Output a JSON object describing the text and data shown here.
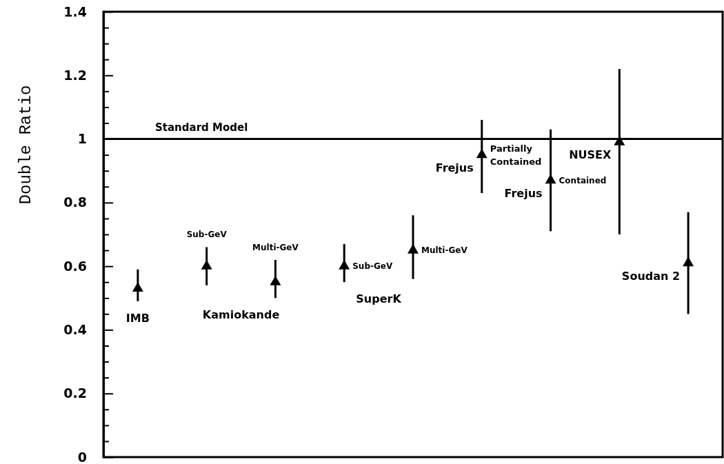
{
  "chart_data": {
    "type": "scatter",
    "ylabel": "Double Ratio",
    "categories": [
      null,
      null,
      null,
      null,
      null,
      null,
      null,
      null,
      null
    ],
    "ylim": [
      0,
      1.4
    ],
    "yticks": [
      0,
      {
        "value": 0.05,
        "label": null
      },
      {
        "value": 0.1,
        "label": null
      },
      {
        "value": 0.15,
        "label": null
      },
      0.2,
      {
        "value": 0.25,
        "label": null
      },
      {
        "value": 0.3,
        "label": null
      },
      {
        "value": 0.35,
        "label": null
      },
      0.4,
      {
        "value": 0.45,
        "label": null
      },
      {
        "value": 0.5,
        "label": null
      },
      {
        "value": 0.55,
        "label": null
      },
      0.6,
      {
        "value": 0.65,
        "label": null
      },
      {
        "value": 0.7,
        "label": null
      },
      {
        "value": 0.75,
        "label": null
      },
      0.8,
      {
        "value": 0.85,
        "label": null
      },
      {
        "value": 0.9,
        "label": null
      },
      {
        "value": 0.95,
        "label": null
      },
      1,
      {
        "value": 1.05,
        "label": null
      },
      {
        "value": 1.1,
        "label": null
      },
      {
        "value": 1.15,
        "label": null
      },
      1.2,
      {
        "value": 1.25,
        "label": null
      },
      {
        "value": 1.3,
        "label": null
      },
      {
        "value": 1.35,
        "label": null
      },
      1.4
    ],
    "tick_labels": "y",
    "marker": "triangle",
    "grid": false,
    "ref_lines": [
      {
        "axis": "y",
        "value": 1,
        "label": "Standard Model",
        "color": "#000000"
      }
    ],
    "series": [
      {
        "name": "IMB",
        "color": "#000000",
        "values": [
          0.53,
          null,
          null,
          null,
          null,
          null,
          null,
          null,
          null
        ],
        "errors": [
          [
            0.49,
            0.59
          ],
          null,
          null,
          null,
          null,
          null,
          null,
          null,
          null
        ]
      },
      {
        "name": "Kamiokande",
        "color": "#000000",
        "values": [
          null,
          0.6,
          0.55,
          null,
          null,
          null,
          null,
          null,
          null
        ],
        "errors": [
          null,
          [
            0.54,
            0.66
          ],
          [
            0.5,
            0.62
          ],
          null,
          null,
          null,
          null,
          null,
          null
        ],
        "value_labels": [
          null,
          "Sub-GeV",
          "Multi-GeV",
          null,
          null,
          null,
          null,
          null,
          null
        ]
      },
      {
        "name": "SuperK",
        "color": "#000000",
        "values": [
          null,
          null,
          null,
          0.6,
          0.65,
          null,
          null,
          null,
          null
        ],
        "errors": [
          null,
          null,
          null,
          [
            0.55,
            0.67
          ],
          [
            0.56,
            0.76
          ],
          null,
          null,
          null,
          null
        ],
        "value_labels": [
          null,
          null,
          null,
          "Sub-GeV",
          "Multi-GeV",
          null,
          null,
          null,
          null
        ]
      },
      {
        "name": "Frejus",
        "color": "#000000",
        "values": [
          null,
          null,
          null,
          null,
          null,
          0.95,
          null,
          null,
          null
        ],
        "errors": [
          null,
          null,
          null,
          null,
          null,
          [
            0.83,
            1.06
          ],
          null,
          null,
          null
        ],
        "value_labels": [
          null,
          null,
          null,
          null,
          null,
          "Partially Contained",
          null,
          null,
          null
        ]
      },
      {
        "name": "Frejus",
        "color": "#000000",
        "values": [
          null,
          null,
          null,
          null,
          null,
          null,
          0.87,
          null,
          null
        ],
        "errors": [
          null,
          null,
          null,
          null,
          null,
          null,
          [
            0.71,
            1.03
          ],
          null,
          null
        ],
        "value_labels": [
          null,
          null,
          null,
          null,
          null,
          null,
          "Contained",
          null,
          null
        ]
      },
      {
        "name": "NUSEX",
        "color": "#000000",
        "values": [
          null,
          null,
          null,
          null,
          null,
          null,
          null,
          0.99,
          null
        ],
        "errors": [
          null,
          null,
          null,
          null,
          null,
          null,
          null,
          [
            0.7,
            1.22
          ],
          null
        ]
      },
      {
        "name": "Soudan 2",
        "color": "#000000",
        "values": [
          null,
          null,
          null,
          null,
          null,
          null,
          null,
          null,
          0.61
        ],
        "errors": [
          null,
          null,
          null,
          null,
          null,
          null,
          null,
          null,
          [
            0.45,
            0.77
          ]
        ]
      }
    ]
  }
}
